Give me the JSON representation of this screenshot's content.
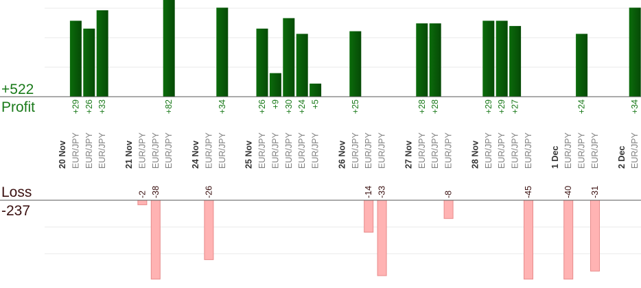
{
  "colors": {
    "profit_bar": "#0b6b0b",
    "profit_bar_dark": "#064a06",
    "profit_text": "#1a7a1a",
    "loss_bar": "#ffb3b3",
    "loss_border": "#e88a8a",
    "loss_text": "#3a1010",
    "date_text": "#333333",
    "pair_text": "#808080",
    "grid": "#e8e8e8",
    "axis": "#555555"
  },
  "summary": {
    "profit_total": "+522",
    "profit_label": "Profit",
    "loss_label": "Loss",
    "loss_total": "-237"
  },
  "chart_data": {
    "type": "bar",
    "slots": [
      {
        "kind": "date",
        "label": "20 Nov"
      },
      {
        "kind": "trade",
        "pair": "EUR/JPY",
        "value": 29
      },
      {
        "kind": "trade",
        "pair": "EUR/JPY",
        "value": 26
      },
      {
        "kind": "trade",
        "pair": "EUR/JPY",
        "value": 33
      },
      {
        "kind": "gap"
      },
      {
        "kind": "date",
        "label": "21 Nov"
      },
      {
        "kind": "trade",
        "pair": "EUR/JPY",
        "value": -2
      },
      {
        "kind": "trade",
        "pair": "EUR/JPY",
        "value": -38
      },
      {
        "kind": "trade",
        "pair": "EUR/JPY",
        "value": 82
      },
      {
        "kind": "gap"
      },
      {
        "kind": "date",
        "label": "24 Nov"
      },
      {
        "kind": "trade",
        "pair": "EUR/JPY",
        "value": -26
      },
      {
        "kind": "trade",
        "pair": "EUR/JPY",
        "value": 34
      },
      {
        "kind": "gap"
      },
      {
        "kind": "date",
        "label": "25 Nov"
      },
      {
        "kind": "trade",
        "pair": "EUR/JPY",
        "value": 26
      },
      {
        "kind": "trade",
        "pair": "EUR/JPY",
        "value": 9
      },
      {
        "kind": "trade",
        "pair": "EUR/JPY",
        "value": 30
      },
      {
        "kind": "trade",
        "pair": "EUR/JPY",
        "value": 24
      },
      {
        "kind": "trade",
        "pair": "EUR/JPY",
        "value": 5
      },
      {
        "kind": "gap"
      },
      {
        "kind": "date",
        "label": "26 Nov"
      },
      {
        "kind": "trade",
        "pair": "EUR/JPY",
        "value": 25
      },
      {
        "kind": "trade",
        "pair": "EUR/JPY",
        "value": -14
      },
      {
        "kind": "trade",
        "pair": "EUR/JPY",
        "value": -33
      },
      {
        "kind": "gap"
      },
      {
        "kind": "date",
        "label": "27 Nov"
      },
      {
        "kind": "trade",
        "pair": "EUR/JPY",
        "value": 28
      },
      {
        "kind": "trade",
        "pair": "EUR/JPY",
        "value": 28
      },
      {
        "kind": "trade",
        "pair": "EUR/JPY",
        "value": -8
      },
      {
        "kind": "gap"
      },
      {
        "kind": "date",
        "label": "28 Nov"
      },
      {
        "kind": "trade",
        "pair": "EUR/JPY",
        "value": 29
      },
      {
        "kind": "trade",
        "pair": "EUR/JPY",
        "value": 29
      },
      {
        "kind": "trade",
        "pair": "EUR/JPY",
        "value": 27
      },
      {
        "kind": "trade",
        "pair": "EUR/JPY",
        "value": -45
      },
      {
        "kind": "gap"
      },
      {
        "kind": "date",
        "label": "1 Dec"
      },
      {
        "kind": "trade",
        "pair": "EUR/JPY",
        "value": -40
      },
      {
        "kind": "trade",
        "pair": "EUR/JPY",
        "value": 24
      },
      {
        "kind": "trade",
        "pair": "EUR/JPY",
        "value": -31
      },
      {
        "kind": "gap"
      },
      {
        "kind": "date",
        "label": "2 Dec"
      },
      {
        "kind": "trade",
        "pair": "EUR/JPY",
        "value": 34
      }
    ],
    "profit_axis_max": 33,
    "loss_axis_max": 30,
    "grid": true
  }
}
